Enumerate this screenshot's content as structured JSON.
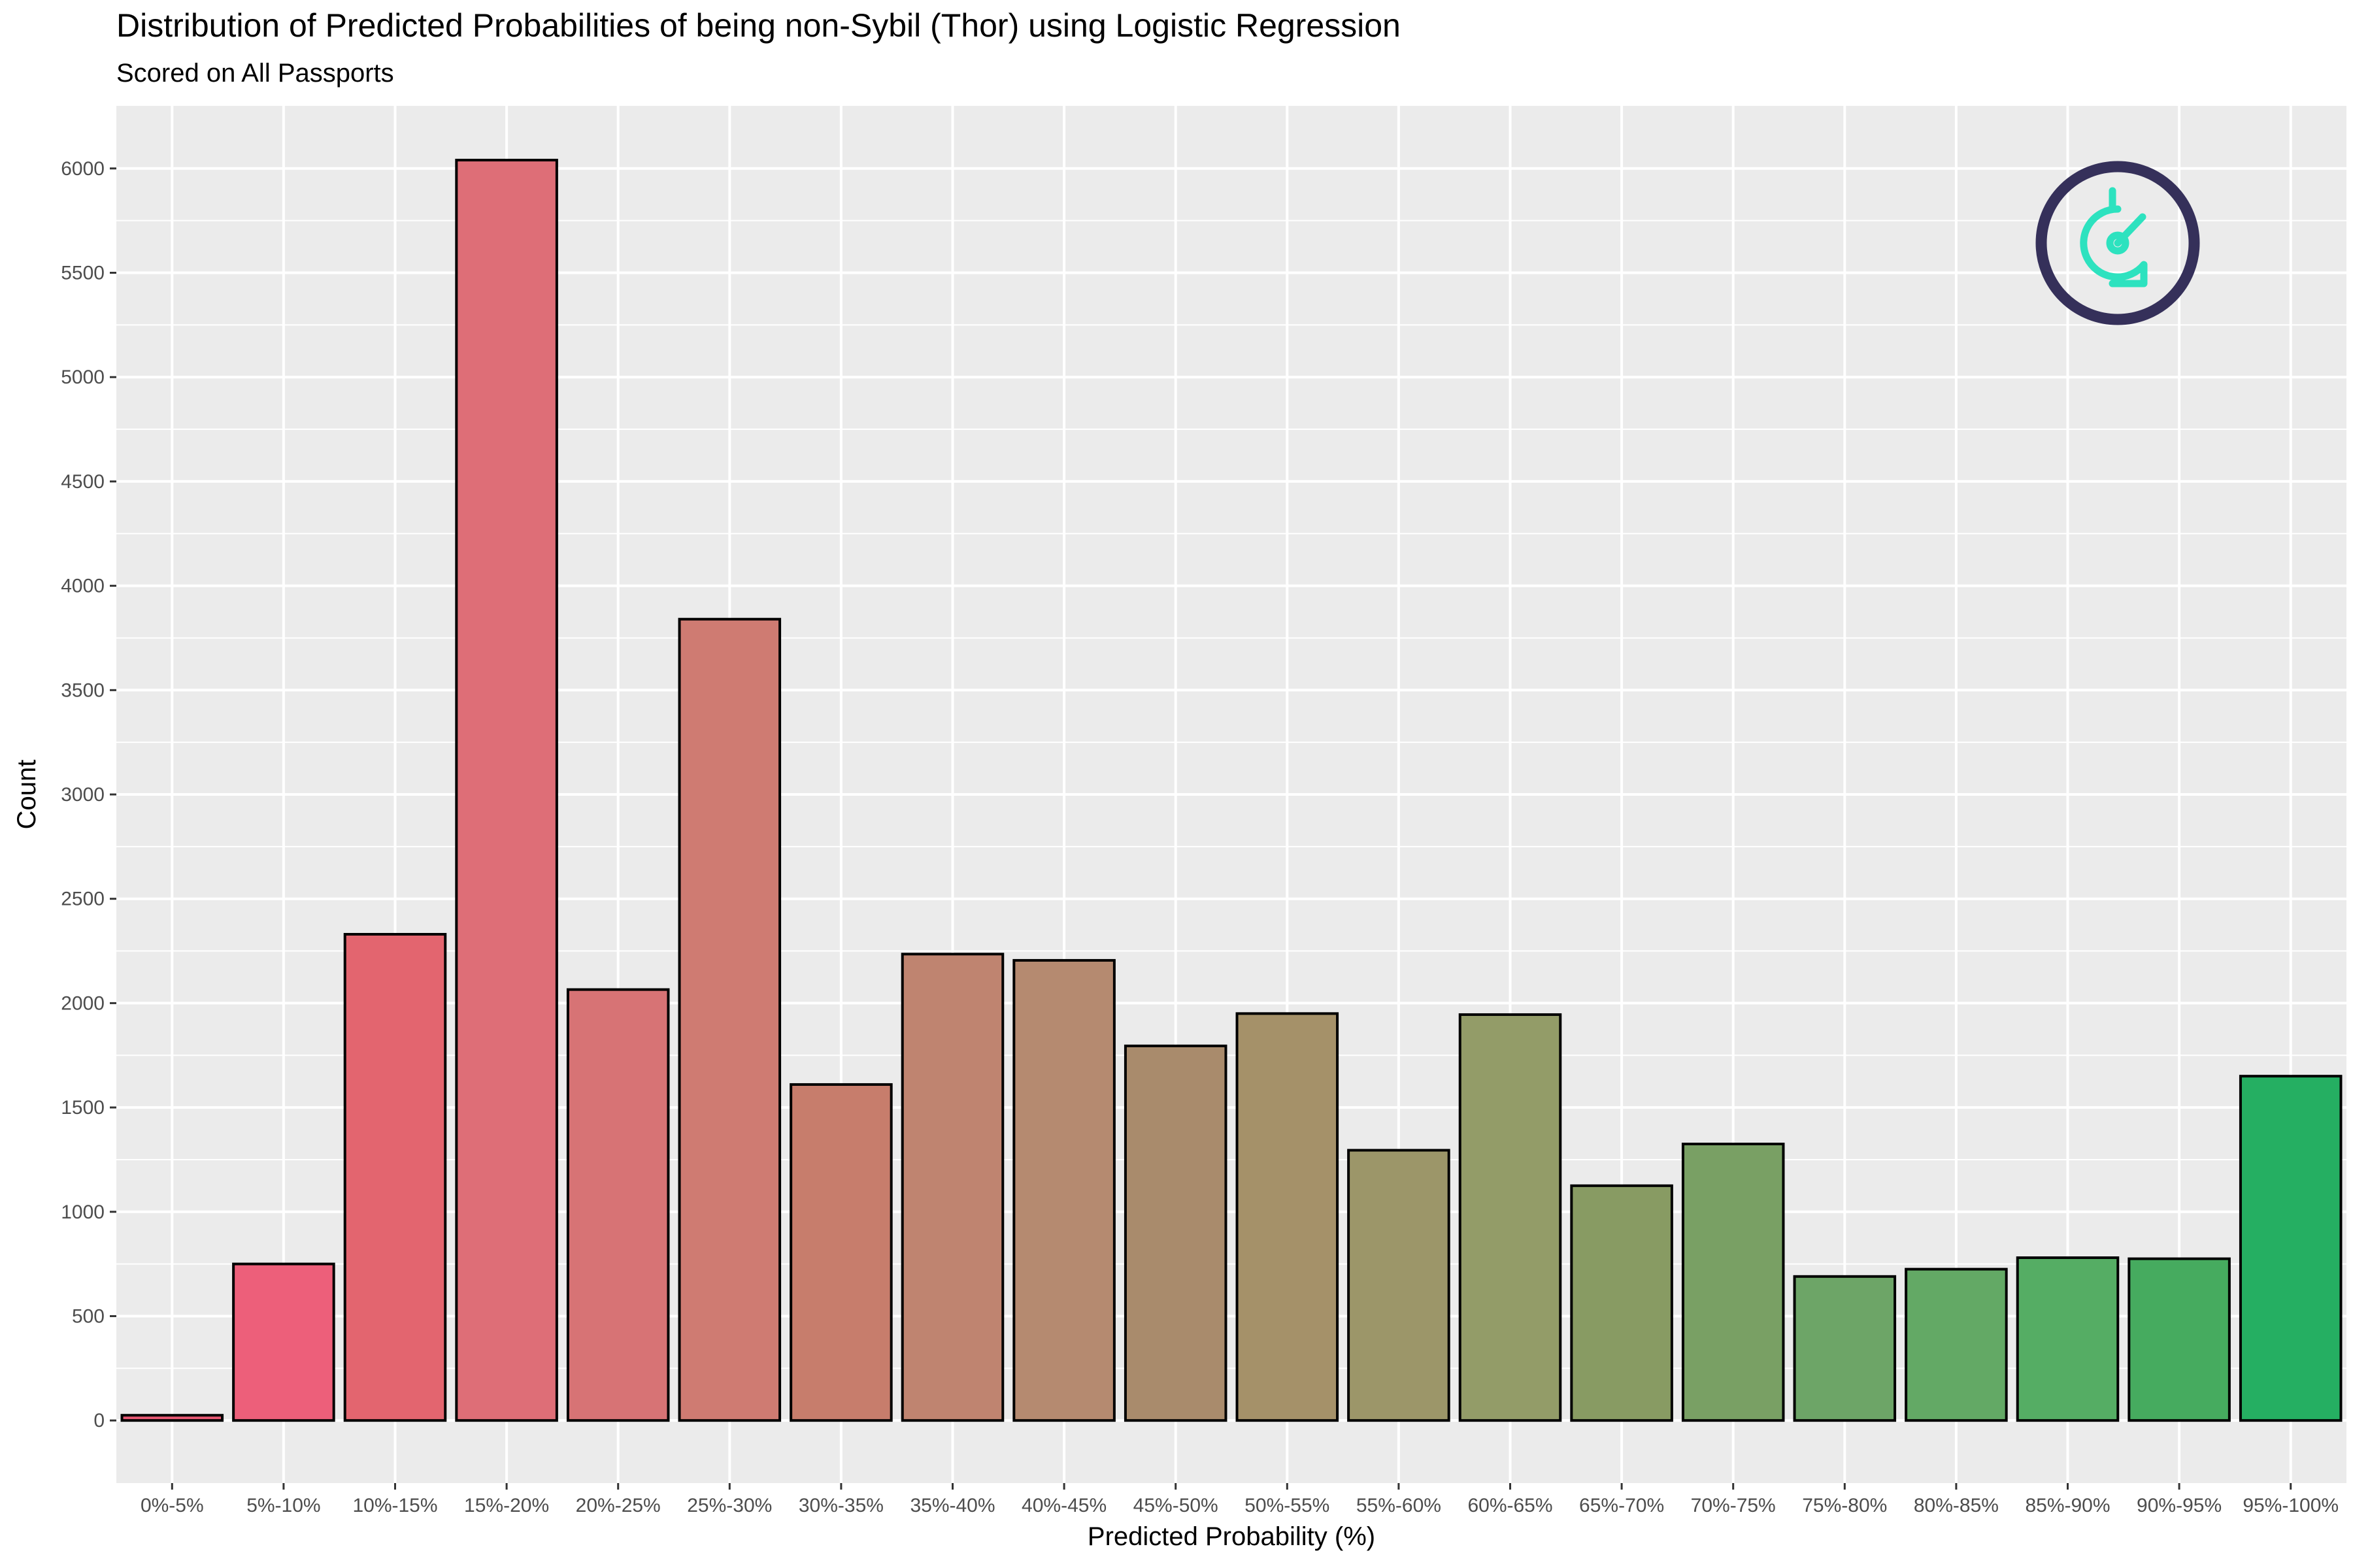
{
  "chart_data": {
    "type": "bar",
    "title": "Distribution of Predicted Probabilities of being non-Sybil (Thor) using Logistic Regression",
    "subtitle": "Scored on All Passports",
    "xlabel": "Predicted Probability (%)",
    "ylabel": "Count",
    "ylim": [
      -300,
      6300
    ],
    "yticks": [
      0,
      500,
      1000,
      1500,
      2000,
      2500,
      3000,
      3500,
      4000,
      4500,
      5000,
      5500,
      6000
    ],
    "grid": true,
    "legend": "none",
    "categories": [
      "0%-5%",
      "5%-10%",
      "10%-15%",
      "15%-20%",
      "20%-25%",
      "25%-30%",
      "30%-35%",
      "35%-40%",
      "40%-45%",
      "45%-50%",
      "50%-55%",
      "55%-60%",
      "60%-65%",
      "65%-70%",
      "70%-75%",
      "75%-80%",
      "80%-85%",
      "85%-90%",
      "90%-95%",
      "95%-100%"
    ],
    "values": [
      25,
      750,
      2330,
      6040,
      2065,
      3840,
      1610,
      2235,
      2205,
      1795,
      1950,
      1295,
      1945,
      1125,
      1325,
      690,
      725,
      780,
      775,
      1650
    ],
    "colors": [
      "#e85873",
      "#ed5f7a",
      "#e3656f",
      "#de6e77",
      "#d77375",
      "#cf7b72",
      "#c77d6c",
      "#bf8470",
      "#b58a70",
      "#a98b6c",
      "#a59169",
      "#9c9669",
      "#939c68",
      "#889b63",
      "#79a064",
      "#6da567",
      "#63a965",
      "#55ad64",
      "#46ab5f",
      "#25af62"
    ]
  },
  "logo": {
    "name": "gitcoin-passport-logo",
    "ring_color": "#35305a",
    "mark_color": "#2de2bf"
  },
  "colors": {
    "panel_background": "#ebebeb",
    "gridline": "#ffffff",
    "bar_outline": "#000000"
  }
}
